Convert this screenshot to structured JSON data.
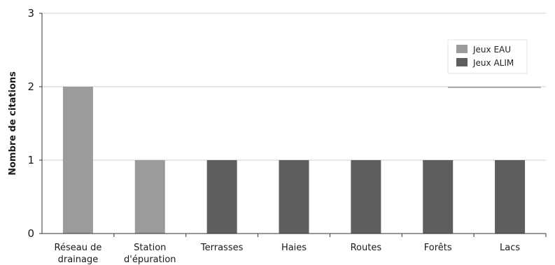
{
  "chart_data": {
    "type": "bar",
    "ylabel": "Nombre de citations",
    "ylim": [
      0,
      3
    ],
    "yticks": [
      "0",
      "1",
      "2",
      "3"
    ],
    "grid": true,
    "legend_position": "top-right",
    "categories": [
      [
        "Réseau de",
        "drainage"
      ],
      [
        "Station",
        "d'épuration"
      ],
      [
        "Terrasses"
      ],
      [
        "Haies"
      ],
      [
        "Routes"
      ],
      [
        "Forêts"
      ],
      [
        "Lacs"
      ]
    ],
    "series": [
      {
        "name": "Jeux EAU",
        "color": "#9b9b9b",
        "values": [
          2,
          1,
          0,
          0,
          0,
          0,
          0
        ]
      },
      {
        "name": "Jeux ALIM",
        "color": "#5e5e5e",
        "values": [
          0,
          0,
          1,
          1,
          1,
          1,
          1
        ]
      }
    ]
  }
}
